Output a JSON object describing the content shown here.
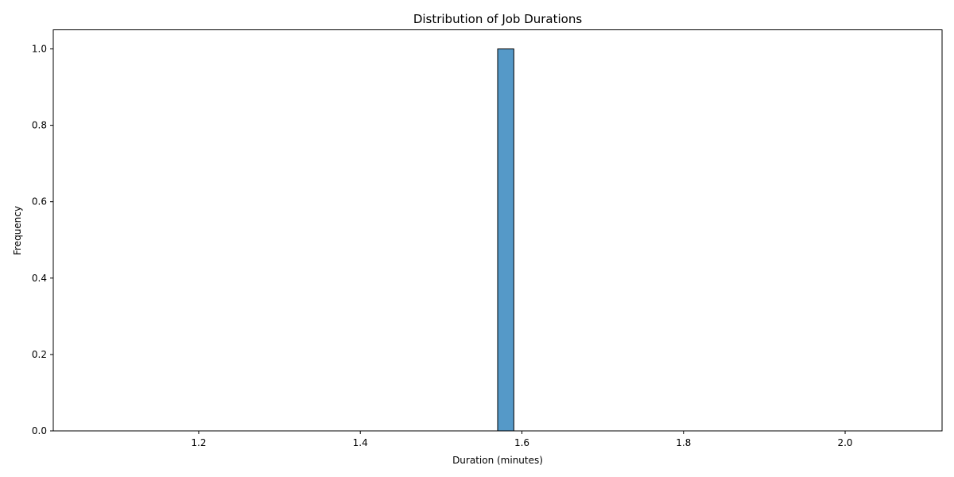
{
  "chart_data": {
    "type": "bar",
    "title": "Distribution of Job Durations",
    "xlabel": "Duration (minutes)",
    "ylabel": "Frequency",
    "xlim": [
      1.02,
      2.12
    ],
    "ylim": [
      0,
      1.05
    ],
    "x_ticks": [
      1.2,
      1.4,
      1.6,
      1.8,
      2.0
    ],
    "x_tick_labels": [
      "1.2",
      "1.4",
      "1.6",
      "1.8",
      "2.0"
    ],
    "y_ticks": [
      0.0,
      0.2,
      0.4,
      0.6,
      0.8,
      1.0
    ],
    "y_tick_labels": [
      "0.0",
      "0.2",
      "0.4",
      "0.6",
      "0.8",
      "1.0"
    ],
    "bin_range": [
      1.07,
      2.07
    ],
    "bin_count": 50,
    "bins": [
      {
        "start": 1.57,
        "end": 1.59,
        "count": 1
      }
    ],
    "grid": false,
    "bar_color": "#5599c8",
    "edge_color": "#000000"
  }
}
